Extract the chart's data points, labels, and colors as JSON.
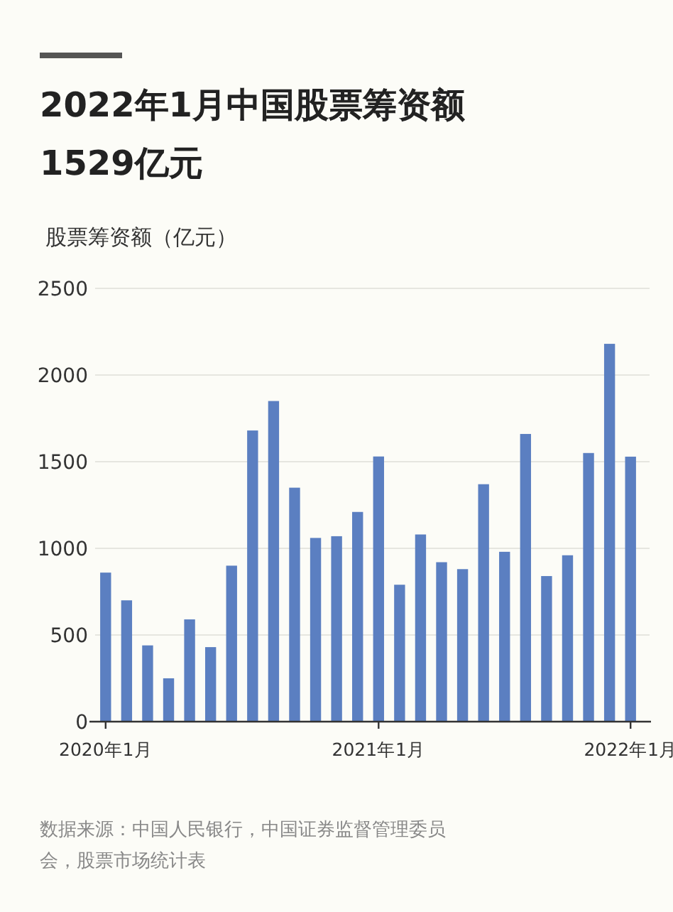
{
  "chart_data": {
    "type": "bar",
    "title": "2022年1月中国股票筹资额",
    "subtitle": "1529亿元",
    "ylabel": "股票筹资额（亿元）",
    "categories": [
      "2020年1月",
      null,
      null,
      null,
      null,
      null,
      null,
      null,
      null,
      null,
      null,
      null,
      null,
      "2021年1月",
      null,
      null,
      null,
      null,
      null,
      null,
      null,
      null,
      null,
      null,
      null,
      "2022年1月"
    ],
    "values": [
      860,
      700,
      440,
      250,
      590,
      430,
      900,
      1680,
      1850,
      1350,
      1060,
      1070,
      1210,
      1530,
      790,
      1080,
      920,
      880,
      1370,
      980,
      1660,
      840,
      960,
      1550,
      2180,
      1529
    ],
    "color": "#5b7fc1",
    "ylim": [
      0,
      2500
    ],
    "yticks": [
      0,
      500,
      1000,
      1500,
      2000,
      2500
    ],
    "grid": "y",
    "annotations": [
      "数据来源：中国人民银行，中国证券监督管理委员会，股票市场统计表"
    ]
  }
}
